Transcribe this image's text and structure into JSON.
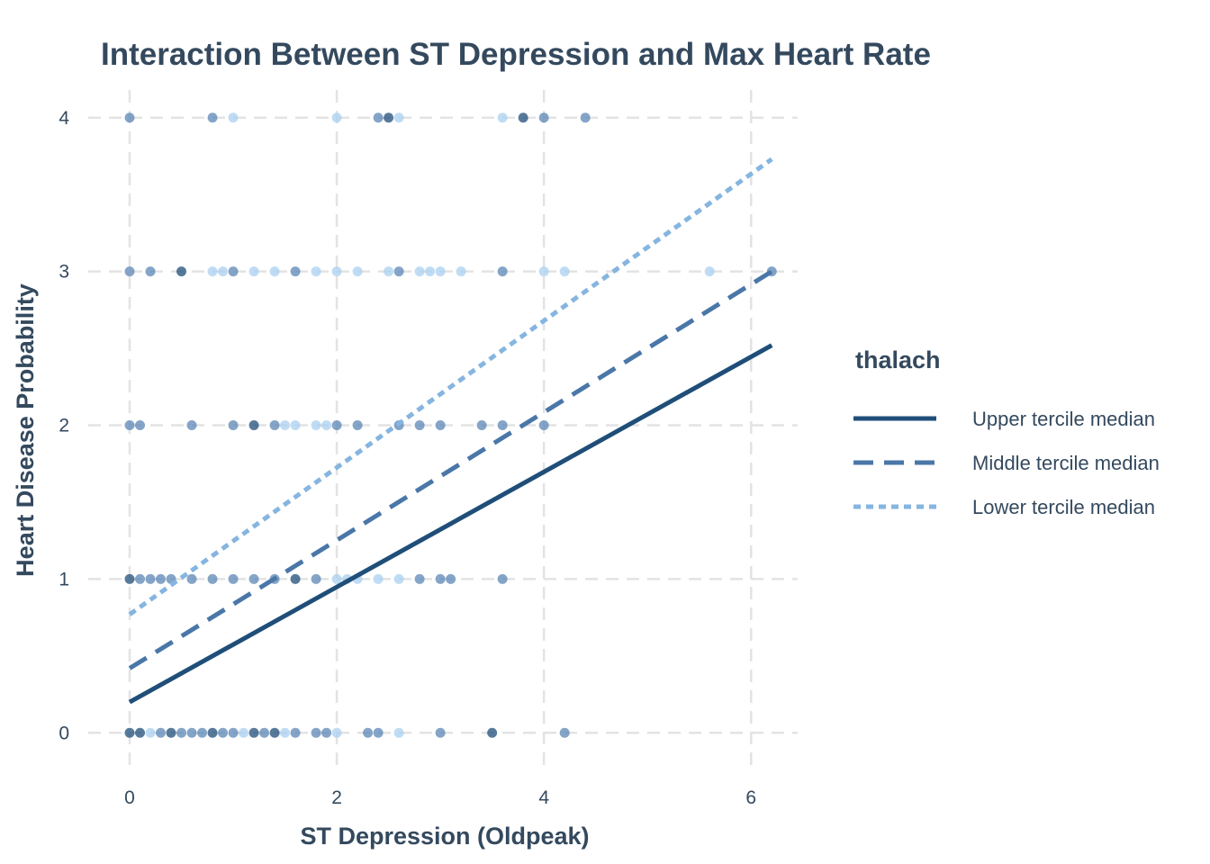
{
  "chart_data": {
    "type": "scatter",
    "title": "Interaction Between ST Depression and Max Heart Rate",
    "xlabel": "ST Depression (Oldpeak)",
    "ylabel": "Heart Disease Probability",
    "xlim": [
      -0.4,
      6.45
    ],
    "ylim": [
      -0.25,
      4.18
    ],
    "xticks": [
      0,
      2,
      4,
      6
    ],
    "yticks": [
      0,
      1,
      2,
      3,
      4
    ],
    "grid": true,
    "legend": {
      "title": "thalach",
      "placement": "right",
      "entries": [
        {
          "label": "Upper tercile median",
          "color": "#1f4e79",
          "style": "solid"
        },
        {
          "label": "Middle tercile median",
          "color": "#4a77a8",
          "style": "dashed"
        },
        {
          "label": "Lower tercile median",
          "color": "#85b5e0",
          "style": "dotted"
        }
      ]
    },
    "point_colors": {
      "dark": "#1f4e79",
      "mid": "#5b86b5",
      "light": "#a9d0f0"
    },
    "points": [
      {
        "x": 0,
        "y": 4,
        "c": "mid"
      },
      {
        "x": 0.8,
        "y": 4,
        "c": "mid"
      },
      {
        "x": 1.0,
        "y": 4,
        "c": "light"
      },
      {
        "x": 2.0,
        "y": 4,
        "c": "light"
      },
      {
        "x": 2.4,
        "y": 4,
        "c": "mid"
      },
      {
        "x": 2.5,
        "y": 4,
        "c": "dark"
      },
      {
        "x": 2.6,
        "y": 4,
        "c": "light"
      },
      {
        "x": 3.6,
        "y": 4,
        "c": "light"
      },
      {
        "x": 3.8,
        "y": 4,
        "c": "dark"
      },
      {
        "x": 4.0,
        "y": 4,
        "c": "mid"
      },
      {
        "x": 4.4,
        "y": 4,
        "c": "mid"
      },
      {
        "x": 0,
        "y": 3,
        "c": "mid"
      },
      {
        "x": 0.2,
        "y": 3,
        "c": "mid"
      },
      {
        "x": 0.5,
        "y": 3,
        "c": "dark"
      },
      {
        "x": 0.8,
        "y": 3,
        "c": "light"
      },
      {
        "x": 0.9,
        "y": 3,
        "c": "light"
      },
      {
        "x": 1.0,
        "y": 3,
        "c": "mid"
      },
      {
        "x": 1.2,
        "y": 3,
        "c": "light"
      },
      {
        "x": 1.4,
        "y": 3,
        "c": "light"
      },
      {
        "x": 1.6,
        "y": 3,
        "c": "mid"
      },
      {
        "x": 1.8,
        "y": 3,
        "c": "light"
      },
      {
        "x": 2.0,
        "y": 3,
        "c": "light"
      },
      {
        "x": 2.2,
        "y": 3,
        "c": "light"
      },
      {
        "x": 2.5,
        "y": 3,
        "c": "light"
      },
      {
        "x": 2.6,
        "y": 3,
        "c": "mid"
      },
      {
        "x": 2.8,
        "y": 3,
        "c": "light"
      },
      {
        "x": 2.9,
        "y": 3,
        "c": "light"
      },
      {
        "x": 3.0,
        "y": 3,
        "c": "light"
      },
      {
        "x": 3.2,
        "y": 3,
        "c": "light"
      },
      {
        "x": 3.6,
        "y": 3,
        "c": "mid"
      },
      {
        "x": 4.0,
        "y": 3,
        "c": "light"
      },
      {
        "x": 4.2,
        "y": 3,
        "c": "light"
      },
      {
        "x": 5.6,
        "y": 3,
        "c": "light"
      },
      {
        "x": 6.2,
        "y": 3,
        "c": "mid"
      },
      {
        "x": 0,
        "y": 2,
        "c": "mid"
      },
      {
        "x": 0.1,
        "y": 2,
        "c": "mid"
      },
      {
        "x": 0.6,
        "y": 2,
        "c": "mid"
      },
      {
        "x": 1.0,
        "y": 2,
        "c": "mid"
      },
      {
        "x": 1.2,
        "y": 2,
        "c": "dark"
      },
      {
        "x": 1.4,
        "y": 2,
        "c": "mid"
      },
      {
        "x": 1.5,
        "y": 2,
        "c": "light"
      },
      {
        "x": 1.6,
        "y": 2,
        "c": "light"
      },
      {
        "x": 1.8,
        "y": 2,
        "c": "light"
      },
      {
        "x": 1.9,
        "y": 2,
        "c": "light"
      },
      {
        "x": 2.0,
        "y": 2,
        "c": "mid"
      },
      {
        "x": 2.2,
        "y": 2,
        "c": "mid"
      },
      {
        "x": 2.6,
        "y": 2,
        "c": "mid"
      },
      {
        "x": 2.8,
        "y": 2,
        "c": "mid"
      },
      {
        "x": 3.0,
        "y": 2,
        "c": "mid"
      },
      {
        "x": 3.4,
        "y": 2,
        "c": "mid"
      },
      {
        "x": 3.6,
        "y": 2,
        "c": "mid"
      },
      {
        "x": 4.0,
        "y": 2,
        "c": "mid"
      },
      {
        "x": 0,
        "y": 1,
        "c": "dark"
      },
      {
        "x": 0.1,
        "y": 1,
        "c": "mid"
      },
      {
        "x": 0.2,
        "y": 1,
        "c": "mid"
      },
      {
        "x": 0.3,
        "y": 1,
        "c": "mid"
      },
      {
        "x": 0.4,
        "y": 1,
        "c": "mid"
      },
      {
        "x": 0.6,
        "y": 1,
        "c": "mid"
      },
      {
        "x": 0.8,
        "y": 1,
        "c": "mid"
      },
      {
        "x": 1.0,
        "y": 1,
        "c": "mid"
      },
      {
        "x": 1.2,
        "y": 1,
        "c": "mid"
      },
      {
        "x": 1.4,
        "y": 1,
        "c": "mid"
      },
      {
        "x": 1.6,
        "y": 1,
        "c": "dark"
      },
      {
        "x": 1.8,
        "y": 1,
        "c": "mid"
      },
      {
        "x": 2.0,
        "y": 1,
        "c": "light"
      },
      {
        "x": 2.1,
        "y": 1,
        "c": "light"
      },
      {
        "x": 2.2,
        "y": 1,
        "c": "light"
      },
      {
        "x": 2.4,
        "y": 1,
        "c": "light"
      },
      {
        "x": 2.6,
        "y": 1,
        "c": "light"
      },
      {
        "x": 2.8,
        "y": 1,
        "c": "mid"
      },
      {
        "x": 3.0,
        "y": 1,
        "c": "mid"
      },
      {
        "x": 3.1,
        "y": 1,
        "c": "mid"
      },
      {
        "x": 3.6,
        "y": 1,
        "c": "mid"
      },
      {
        "x": 0,
        "y": 0,
        "c": "dark"
      },
      {
        "x": 0.1,
        "y": 0,
        "c": "dark"
      },
      {
        "x": 0.2,
        "y": 0,
        "c": "light"
      },
      {
        "x": 0.3,
        "y": 0,
        "c": "mid"
      },
      {
        "x": 0.4,
        "y": 0,
        "c": "dark"
      },
      {
        "x": 0.5,
        "y": 0,
        "c": "mid"
      },
      {
        "x": 0.6,
        "y": 0,
        "c": "mid"
      },
      {
        "x": 0.7,
        "y": 0,
        "c": "mid"
      },
      {
        "x": 0.8,
        "y": 0,
        "c": "dark"
      },
      {
        "x": 0.9,
        "y": 0,
        "c": "mid"
      },
      {
        "x": 1.0,
        "y": 0,
        "c": "mid"
      },
      {
        "x": 1.1,
        "y": 0,
        "c": "light"
      },
      {
        "x": 1.2,
        "y": 0,
        "c": "dark"
      },
      {
        "x": 1.3,
        "y": 0,
        "c": "mid"
      },
      {
        "x": 1.4,
        "y": 0,
        "c": "dark"
      },
      {
        "x": 1.5,
        "y": 0,
        "c": "light"
      },
      {
        "x": 1.6,
        "y": 0,
        "c": "mid"
      },
      {
        "x": 1.8,
        "y": 0,
        "c": "mid"
      },
      {
        "x": 1.9,
        "y": 0,
        "c": "mid"
      },
      {
        "x": 2.0,
        "y": 0,
        "c": "light"
      },
      {
        "x": 2.3,
        "y": 0,
        "c": "mid"
      },
      {
        "x": 2.4,
        "y": 0,
        "c": "mid"
      },
      {
        "x": 2.6,
        "y": 0,
        "c": "light"
      },
      {
        "x": 3.0,
        "y": 0,
        "c": "mid"
      },
      {
        "x": 3.5,
        "y": 0,
        "c": "dark"
      },
      {
        "x": 4.2,
        "y": 0,
        "c": "mid"
      }
    ],
    "series": [
      {
        "name": "Upper tercile median",
        "style": "solid",
        "color": "#1f4e79",
        "x": [
          0,
          6.2
        ],
        "y": [
          0.2,
          2.52
        ]
      },
      {
        "name": "Middle tercile median",
        "style": "dashed",
        "color": "#4a77a8",
        "x": [
          0,
          6.2
        ],
        "y": [
          0.42,
          3.0
        ]
      },
      {
        "name": "Lower tercile median",
        "style": "dotted",
        "color": "#85b5e0",
        "x": [
          0,
          6.2
        ],
        "y": [
          0.77,
          3.73
        ]
      }
    ]
  }
}
